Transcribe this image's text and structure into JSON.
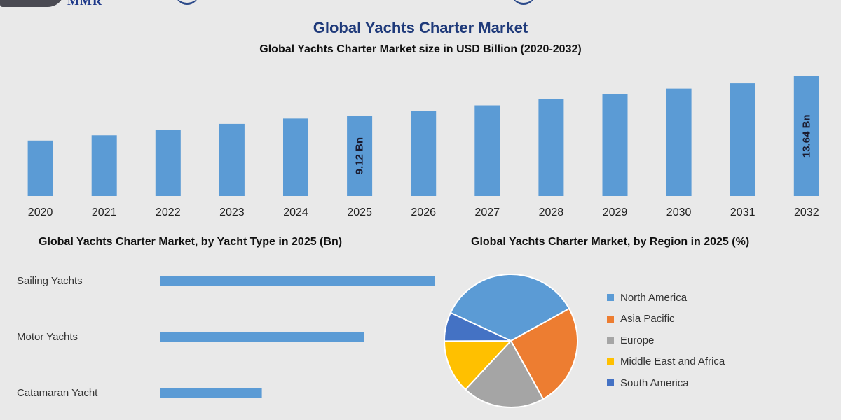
{
  "logo": {
    "text": "MMR"
  },
  "title": "Global Yachts Charter Market",
  "subtitle": "Global Yachts Charter Market size in USD Billion (2020-2032)",
  "colors": {
    "bar": "#5b9bd5",
    "north_america": "#5b9bd5",
    "asia_pacific": "#ed7d31",
    "europe": "#a5a5a5",
    "middle_east_africa": "#ffc000",
    "south_america": "#4472c4"
  },
  "chart_data": [
    {
      "type": "bar",
      "title": "Global Yachts Charter Market size in USD Billion (2020-2032)",
      "categories": [
        "2020",
        "2021",
        "2022",
        "2023",
        "2024",
        "2025",
        "2026",
        "2027",
        "2028",
        "2029",
        "2030",
        "2031",
        "2032"
      ],
      "values": [
        6.3,
        6.9,
        7.5,
        8.2,
        8.8,
        9.12,
        9.7,
        10.3,
        11.0,
        11.6,
        12.2,
        12.8,
        13.64
      ],
      "ylim": [
        0,
        14
      ],
      "data_labels": [
        {
          "index": 5,
          "text": "9.12 Bn"
        },
        {
          "index": 12,
          "text": "13.64 Bn"
        }
      ],
      "grid": false
    },
    {
      "type": "bar",
      "orientation": "horizontal",
      "title": "Global Yachts Charter Market, by Yacht Type in 2025 (Bn)",
      "categories": [
        "Sailing Yachts",
        "Motor Yachts",
        "Catamaran Yacht"
      ],
      "values": [
        4.8,
        3.2,
        1.6
      ],
      "xlim": [
        0,
        5
      ]
    },
    {
      "type": "pie",
      "title": "Global Yachts Charter Market, by Region in 2025 (%)",
      "labels": [
        "North America",
        "Asia Pacific",
        "Europe",
        "Middle East and Africa",
        "South America"
      ],
      "values": [
        35,
        25,
        20,
        13,
        7
      ],
      "legend": "right"
    }
  ]
}
